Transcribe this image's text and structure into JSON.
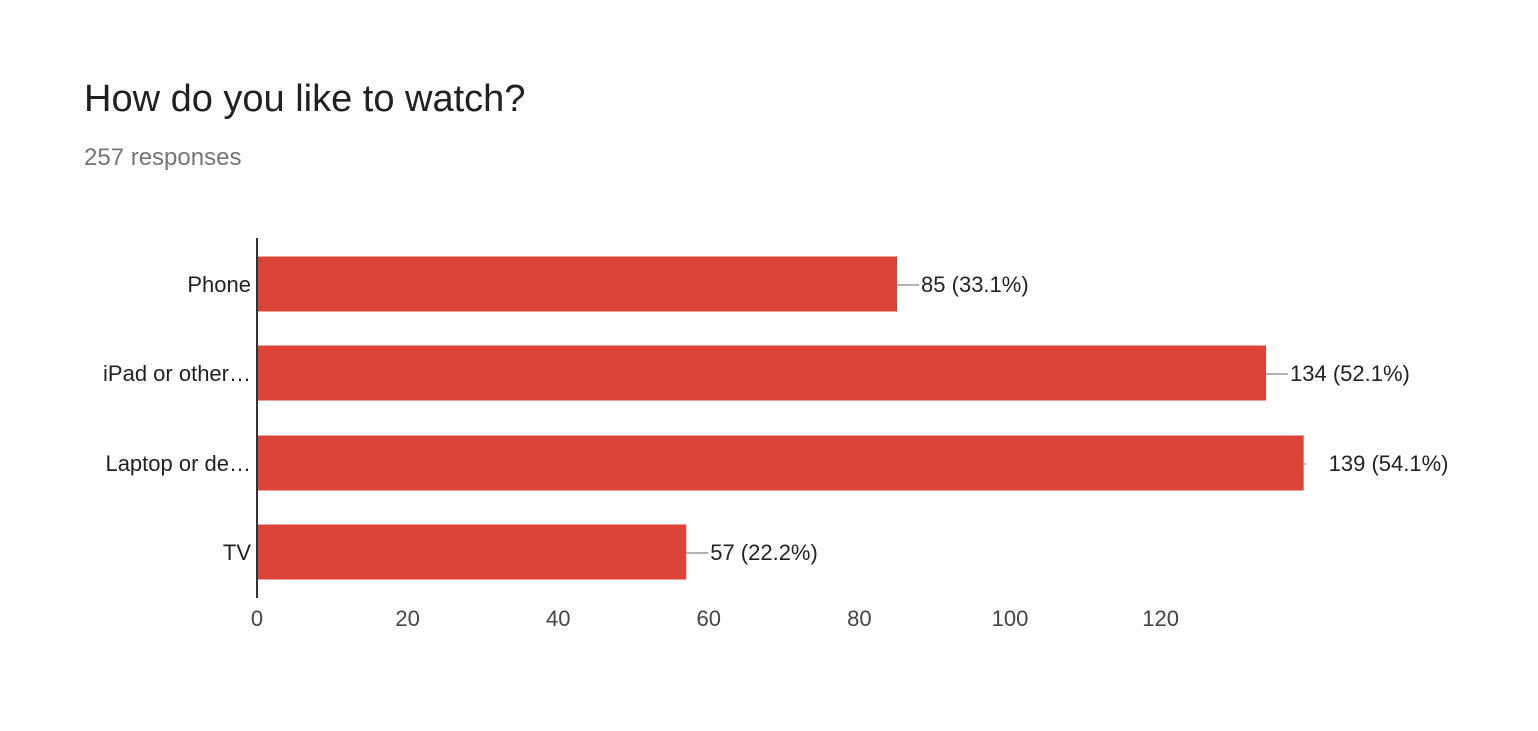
{
  "header": {
    "title": "How do you like to watch?",
    "subtitle": "257 responses"
  },
  "colors": {
    "bar": "#db4437",
    "axis": "#333333",
    "leader": "#999999"
  },
  "chart_data": {
    "type": "bar",
    "orientation": "horizontal",
    "title": "How do you like to watch?",
    "subtitle": "257 responses",
    "categories": [
      "Phone",
      "iPad or other…",
      "Laptop or de…",
      "TV"
    ],
    "values": [
      85,
      134,
      139,
      57
    ],
    "value_labels": [
      "85 (33.1%)",
      "134 (52.1%)",
      "139 (54.1%)",
      "57 (22.2%)"
    ],
    "xticks": [
      0,
      20,
      40,
      60,
      80,
      100,
      120
    ],
    "xlim": [
      0,
      139
    ],
    "grid": false,
    "legend": "none"
  }
}
